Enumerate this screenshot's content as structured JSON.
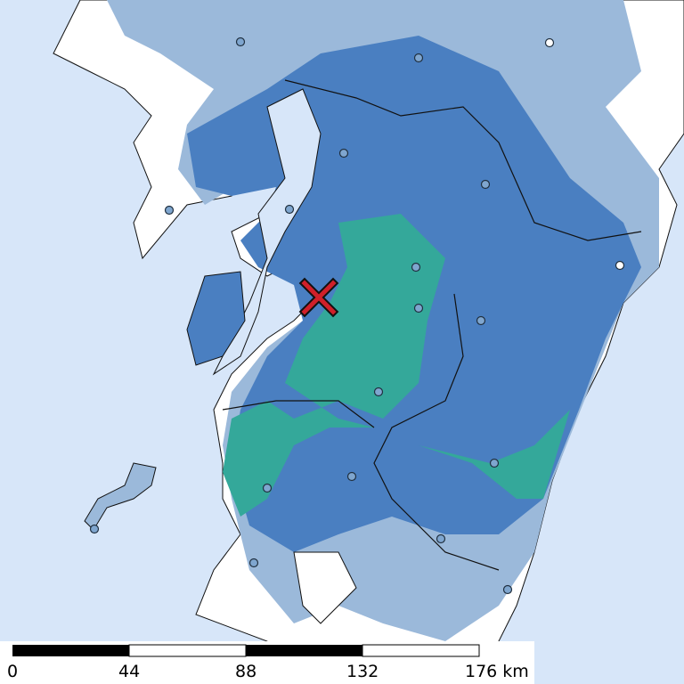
{
  "scale_bar": {
    "labels": [
      "0",
      "44",
      "88",
      "132",
      "176 km"
    ]
  }
}
